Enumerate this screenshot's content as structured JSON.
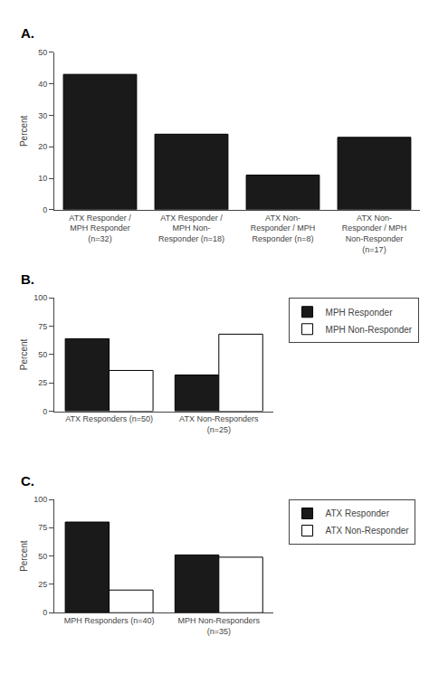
{
  "chart_data": [
    {
      "type": "bar",
      "title": "A.",
      "categories": [
        "ATX Responder /\nMPH Responder\n(n=32)",
        "ATX Responder /\nMPH Non-\nResponder (n=18)",
        "ATX Non-\nResponder / MPH\nResponder (n=8)",
        "ATX Non-\nResponder / MPH\nNon-Responder\n(n=17)"
      ],
      "values": [
        43,
        24,
        11,
        23
      ],
      "color": "#1a1a1a",
      "ylabel": "Percent",
      "ylim": [
        0,
        50
      ],
      "yticks": [
        0,
        10,
        20,
        30,
        40,
        50
      ],
      "grid": false
    },
    {
      "type": "bar",
      "title": "B.",
      "categories": [
        "ATX Responders (n=50)",
        "ATX Non-Responders\n(n=25)"
      ],
      "series": [
        {
          "name": "MPH Responder",
          "values": [
            64,
            32
          ],
          "color": "#1a1a1a"
        },
        {
          "name": "MPH Non-Responder",
          "values": [
            36,
            68
          ],
          "color": "#ffffff"
        }
      ],
      "ylabel": "Percent",
      "ylim": [
        0,
        100
      ],
      "yticks": [
        0,
        25,
        50,
        75,
        100
      ],
      "grid": false,
      "legend": "right"
    },
    {
      "type": "bar",
      "title": "C.",
      "categories": [
        "MPH Responders (n=40)",
        "MPH Non-Responders\n(n=35)"
      ],
      "series": [
        {
          "name": "ATX Responder",
          "values": [
            80,
            51
          ],
          "color": "#1a1a1a"
        },
        {
          "name": "ATX Non-Responder",
          "values": [
            20,
            49
          ],
          "color": "#ffffff"
        }
      ],
      "ylabel": "Percent",
      "ylim": [
        0,
        100
      ],
      "yticks": [
        0,
        25,
        50,
        75,
        100
      ],
      "grid": false,
      "legend": "right"
    }
  ]
}
